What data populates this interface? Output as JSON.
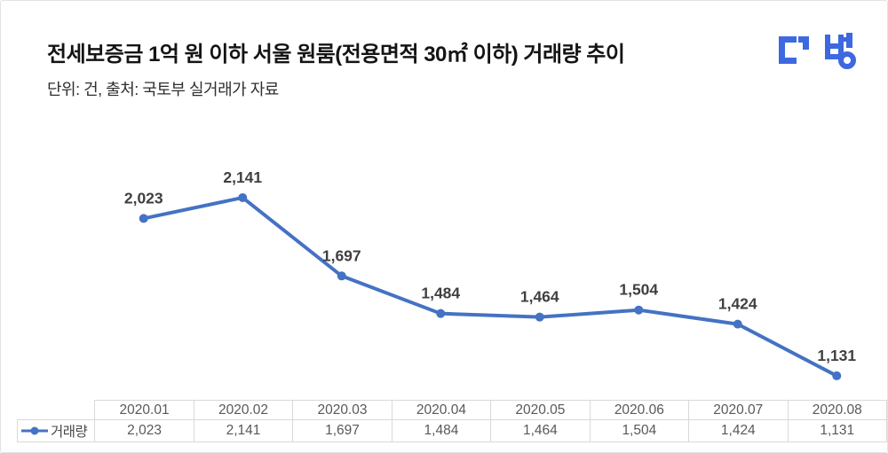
{
  "header": {
    "title": "전세보증금 1억 원 이하 서울 원룸(전용면적 30㎡ 이하) 거래량 추이",
    "subtitle": "단위: 건, 출처: 국토부 실거래가 자료",
    "logo_name": "다방"
  },
  "colors": {
    "line_blue": "#4472c4",
    "logo_blue": "#3e68e0",
    "data_label": "#3f3f3f",
    "table_border": "#d9d9d9",
    "table_text": "#595959",
    "title_text": "#141414"
  },
  "chart_data": {
    "type": "line",
    "title": "전세보증금 1억 원 이하 서울 원룸(전용면적 30㎡ 이하) 거래량 추이",
    "unit_note": "단위: 건",
    "source": "국토부 실거래가 자료",
    "categories": [
      "2020.01",
      "2020.02",
      "2020.03",
      "2020.04",
      "2020.05",
      "2020.06",
      "2020.07",
      "2020.08"
    ],
    "series": [
      {
        "name": "거래량",
        "values": [
          2023,
          2141,
          1697,
          1484,
          1464,
          1504,
          1424,
          1131
        ]
      }
    ],
    "data_labels": [
      "2,023",
      "2,141",
      "1,697",
      "1,484",
      "1,464",
      "1,504",
      "1,424",
      "1,131"
    ],
    "xlabel": "",
    "ylabel": "",
    "ylim": [
      1000,
      2350
    ],
    "grid": false,
    "legend_position": "table-row-header",
    "marker": "circle"
  },
  "table": {
    "row_header": "거래량",
    "columns": [
      "2020.01",
      "2020.02",
      "2020.03",
      "2020.04",
      "2020.05",
      "2020.06",
      "2020.07",
      "2020.08"
    ],
    "values": [
      "2,023",
      "2,141",
      "1,697",
      "1,484",
      "1,464",
      "1,504",
      "1,424",
      "1,131"
    ]
  }
}
